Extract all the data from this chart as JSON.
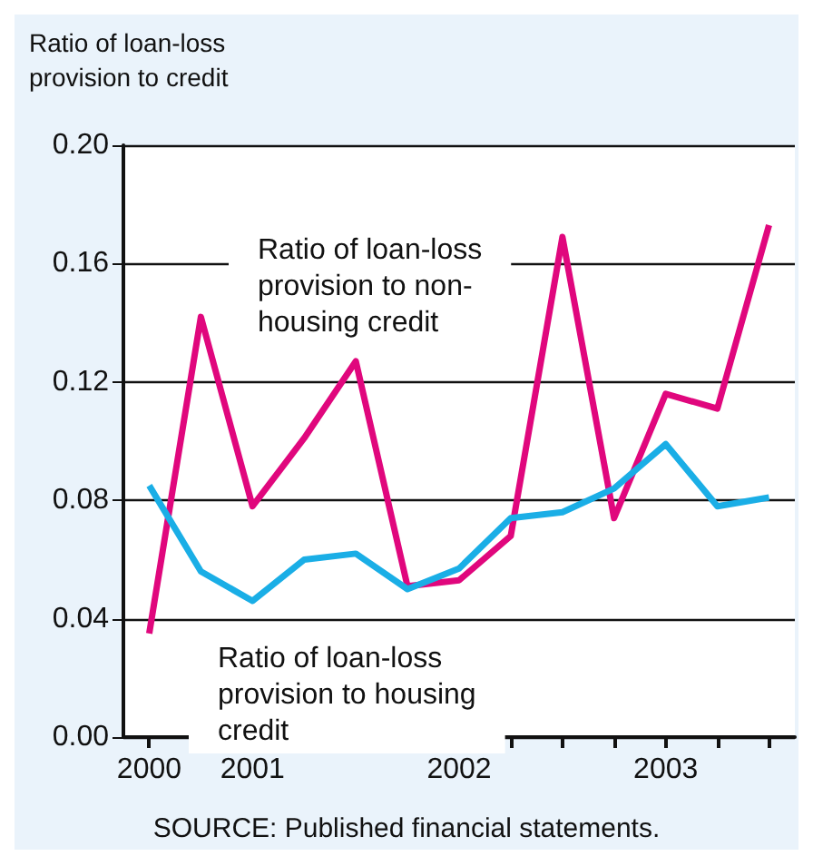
{
  "chart_data": {
    "type": "line",
    "ylabel": "Ratio of loan-loss\nprovision to credit",
    "categories": [
      "2000",
      null,
      "2001",
      null,
      null,
      null,
      "2002",
      null,
      null,
      null,
      "2003",
      null,
      null
    ],
    "series": [
      {
        "name": "Ratio of loan-loss\nprovision to non-\nhousing credit",
        "color": "#e0077d",
        "values": [
          0.035,
          0.142,
          0.078,
          0.101,
          0.127,
          0.051,
          0.053,
          0.068,
          0.169,
          0.074,
          0.116,
          0.111,
          0.173
        ]
      },
      {
        "name": "Ratio of loan-loss\nprovision to housing\ncredit",
        "color": "#1aaee6",
        "values": [
          0.085,
          0.056,
          0.046,
          0.06,
          0.062,
          0.05,
          0.057,
          0.074,
          0.076,
          0.084,
          0.099,
          0.078,
          0.081
        ]
      }
    ],
    "ylim": [
      0,
      0.2
    ],
    "yticks": [
      {
        "value": 0,
        "label": "0.00"
      },
      {
        "value": 0.04,
        "label": "0.04"
      },
      {
        "value": 0.08,
        "label": "0.08"
      },
      {
        "value": 0.12,
        "label": "0.12"
      },
      {
        "value": 0.16,
        "label": "0.16"
      },
      {
        "value": 0.2,
        "label": "0.20"
      }
    ],
    "grid": "y",
    "legend": false,
    "marker": "none",
    "line_style": "solid",
    "annotations": [
      "SOURCE: Published financial statements."
    ]
  }
}
